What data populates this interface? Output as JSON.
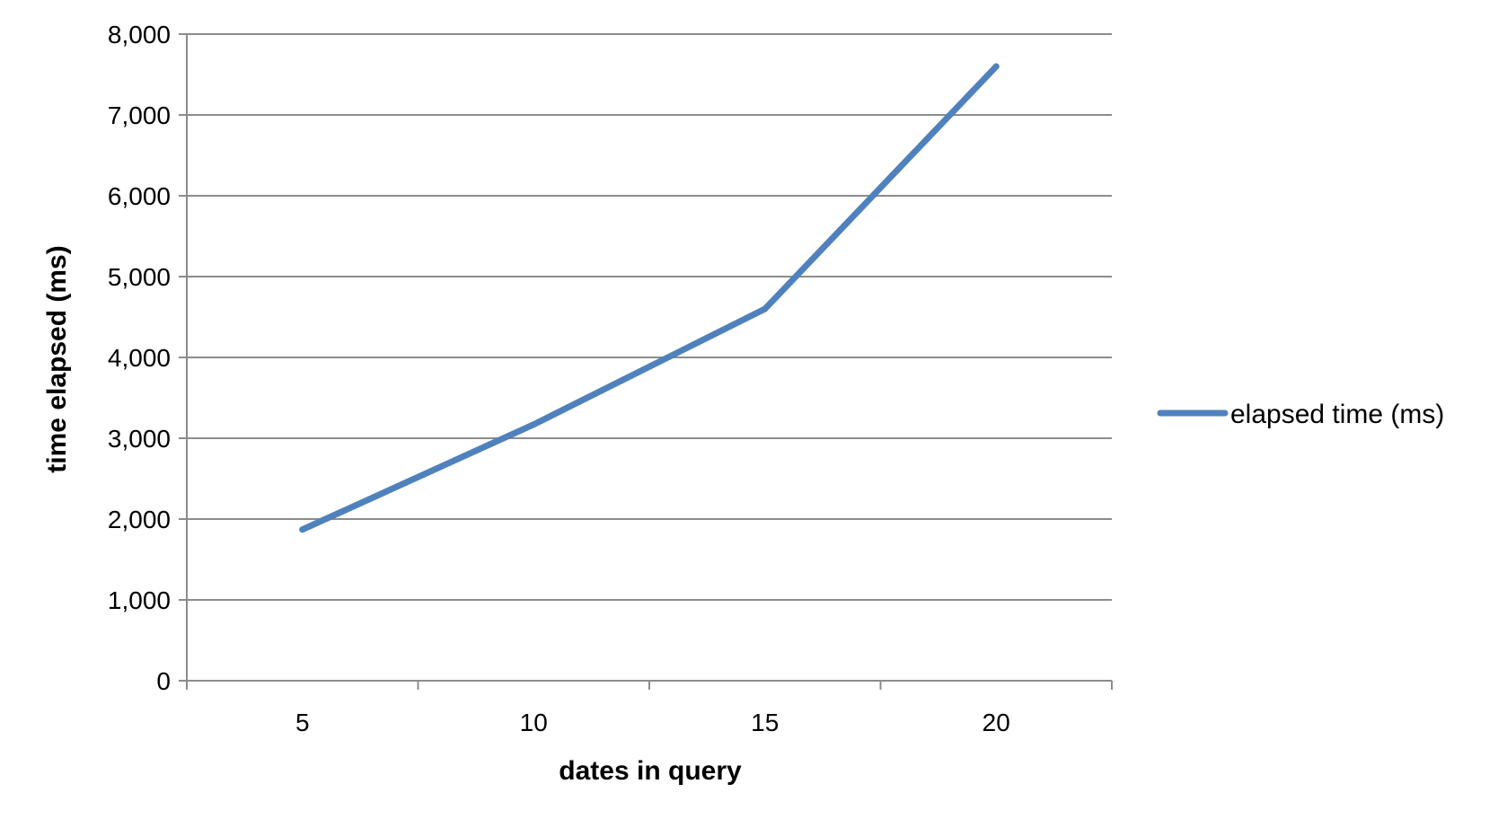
{
  "chart_data": {
    "type": "line",
    "title": "",
    "xlabel": "dates in query",
    "ylabel": "time elapsed (ms)",
    "categories": [
      "5",
      "10",
      "15",
      "20"
    ],
    "series": [
      {
        "name": "elapsed time (ms)",
        "values": [
          1870,
          3170,
          4600,
          7600
        ],
        "color": "#4f81bd"
      }
    ],
    "ylim": [
      0,
      8000
    ],
    "yticks": [
      "0",
      "1,000",
      "2,000",
      "3,000",
      "4,000",
      "5,000",
      "6,000",
      "7,000",
      "8,000"
    ],
    "ytick_values": [
      0,
      1000,
      2000,
      3000,
      4000,
      5000,
      6000,
      7000,
      8000
    ],
    "grid": true,
    "legend_position": "right"
  }
}
